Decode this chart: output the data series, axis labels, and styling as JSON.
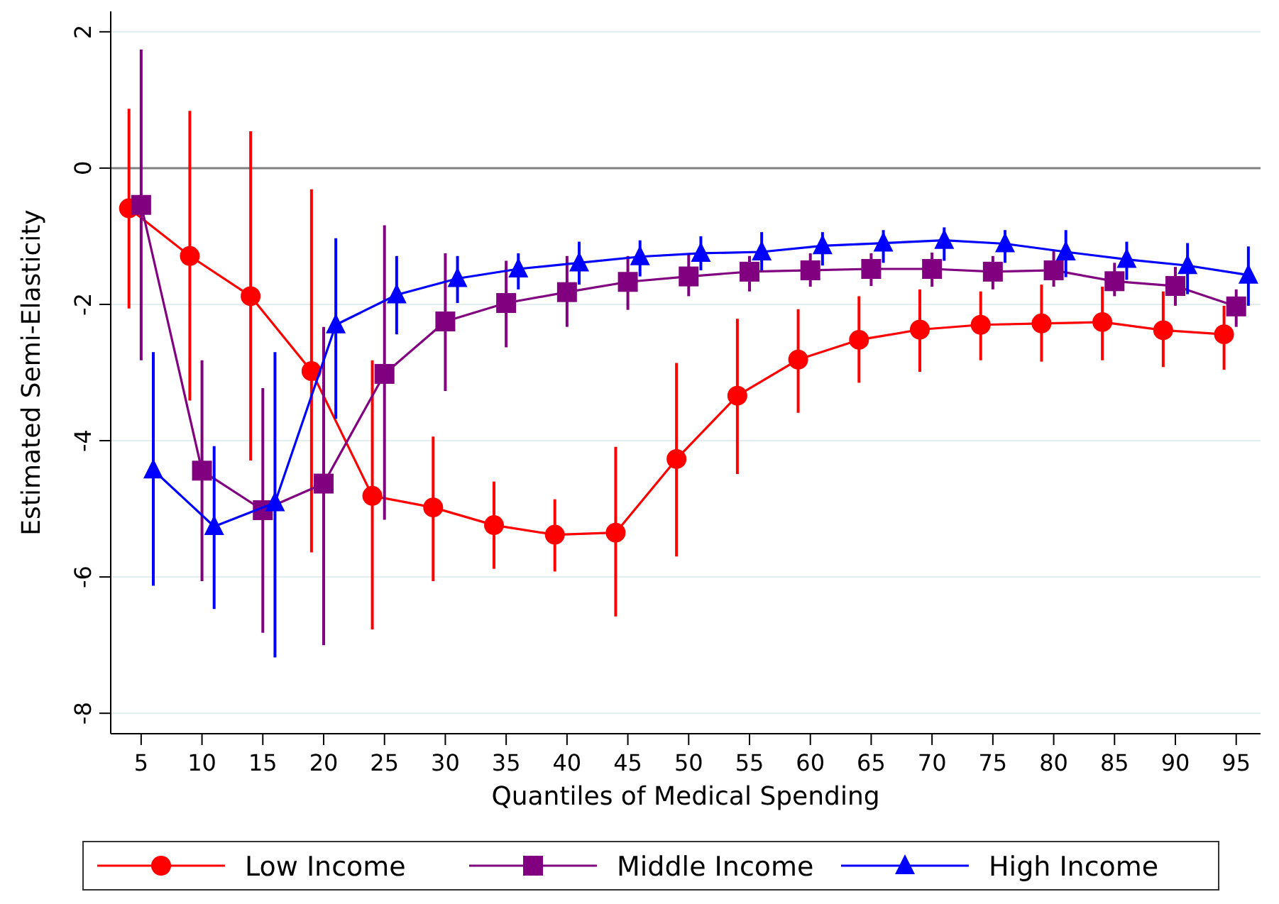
{
  "chart_data": {
    "type": "line",
    "xlabel": "Quantiles of Medical Spending",
    "ylabel": "Estimated Semi-Elasticity",
    "xlim": [
      2.5,
      97
    ],
    "xticks": [
      5,
      10,
      15,
      20,
      25,
      30,
      35,
      40,
      45,
      50,
      55,
      60,
      65,
      70,
      75,
      80,
      85,
      90,
      95
    ],
    "ylim": [
      -8.3,
      2.3
    ],
    "yticks": [
      -8,
      -6,
      -4,
      -2,
      0,
      2
    ],
    "grid": "y",
    "legend": "bottom",
    "ref_lines": [
      {
        "axis": "y",
        "value": 0,
        "color": "#808080"
      }
    ],
    "series": [
      {
        "name": "Low Income",
        "color": "#ff0000",
        "marker": "circle",
        "x": [
          4,
          9,
          14,
          19,
          24,
          29,
          34,
          39,
          44,
          49,
          54,
          59,
          64,
          69,
          74,
          79,
          84,
          89,
          94
        ],
        "values": [
          -0.59,
          -1.29,
          -1.88,
          -2.98,
          -4.81,
          -4.98,
          -5.24,
          -5.38,
          -5.35,
          -4.27,
          -3.34,
          -2.81,
          -2.52,
          -2.37,
          -2.3,
          -2.28,
          -2.26,
          -2.38,
          -2.44
        ],
        "errors": [
          [
            -2.06,
            0.87
          ],
          [
            -3.41,
            0.84
          ],
          [
            -4.29,
            0.54
          ],
          [
            -5.64,
            -0.31
          ],
          [
            -6.77,
            -2.82
          ],
          [
            -6.06,
            -3.94
          ],
          [
            -5.88,
            -4.6
          ],
          [
            -5.92,
            -4.86
          ],
          [
            -6.58,
            -4.09
          ],
          [
            -5.7,
            -2.86
          ],
          [
            -4.49,
            -2.21
          ],
          [
            -3.59,
            -2.07
          ],
          [
            -3.15,
            -1.88
          ],
          [
            -2.99,
            -1.78
          ],
          [
            -2.82,
            -1.81
          ],
          [
            -2.84,
            -1.71
          ],
          [
            -2.82,
            -1.74
          ],
          [
            -2.92,
            -1.81
          ],
          [
            -2.96,
            -2.02
          ]
        ]
      },
      {
        "name": "Middle Income",
        "color": "#800080",
        "marker": "square",
        "x": [
          5,
          10,
          15,
          20,
          25,
          30,
          35,
          40,
          45,
          50,
          55,
          60,
          65,
          70,
          75,
          80,
          85,
          90,
          95
        ],
        "values": [
          -0.54,
          -4.44,
          -5.02,
          -4.63,
          -3.02,
          -2.25,
          -1.98,
          -1.82,
          -1.67,
          -1.59,
          -1.52,
          -1.5,
          -1.48,
          -1.48,
          -1.52,
          -1.5,
          -1.66,
          -1.73,
          -2.03
        ],
        "errors": [
          [
            -2.82,
            1.74
          ],
          [
            -6.06,
            -2.82
          ],
          [
            -6.82,
            -3.23
          ],
          [
            -7.0,
            -2.33
          ],
          [
            -5.16,
            -0.84
          ],
          [
            -3.27,
            -1.25
          ],
          [
            -2.63,
            -1.36
          ],
          [
            -2.33,
            -1.29
          ],
          [
            -2.08,
            -1.29
          ],
          [
            -1.88,
            -1.25
          ],
          [
            -1.81,
            -1.29
          ],
          [
            -1.74,
            -1.25
          ],
          [
            -1.73,
            -1.25
          ],
          [
            -1.74,
            -1.24
          ],
          [
            -1.78,
            -1.29
          ],
          [
            -1.74,
            -1.22
          ],
          [
            -1.88,
            -1.39
          ],
          [
            -2.02,
            -1.45
          ],
          [
            -2.33,
            -1.78
          ]
        ]
      },
      {
        "name": "High Income",
        "color": "#0000ff",
        "marker": "triangle",
        "x": [
          6,
          11,
          16,
          21,
          26,
          31,
          36,
          41,
          46,
          51,
          56,
          61,
          66,
          71,
          76,
          81,
          86,
          91,
          96
        ],
        "values": [
          -4.43,
          -5.26,
          -4.91,
          -2.3,
          -1.86,
          -1.62,
          -1.48,
          -1.39,
          -1.3,
          -1.25,
          -1.23,
          -1.14,
          -1.1,
          -1.06,
          -1.11,
          -1.23,
          -1.34,
          -1.43,
          -1.57
        ],
        "errors": [
          [
            -6.13,
            -2.7
          ],
          [
            -6.47,
            -4.08
          ],
          [
            -7.18,
            -2.7
          ],
          [
            -3.68,
            -1.03
          ],
          [
            -2.44,
            -1.29
          ],
          [
            -1.98,
            -1.29
          ],
          [
            -1.78,
            -1.25
          ],
          [
            -1.71,
            -1.08
          ],
          [
            -1.59,
            -1.06
          ],
          [
            -1.5,
            -1.0
          ],
          [
            -1.5,
            -0.94
          ],
          [
            -1.43,
            -0.94
          ],
          [
            -1.39,
            -0.91
          ],
          [
            -1.36,
            -0.87
          ],
          [
            -1.39,
            -0.91
          ],
          [
            -1.6,
            -0.91
          ],
          [
            -1.64,
            -1.08
          ],
          [
            -1.85,
            -1.1
          ],
          [
            -2.02,
            -1.15
          ]
        ]
      }
    ]
  }
}
